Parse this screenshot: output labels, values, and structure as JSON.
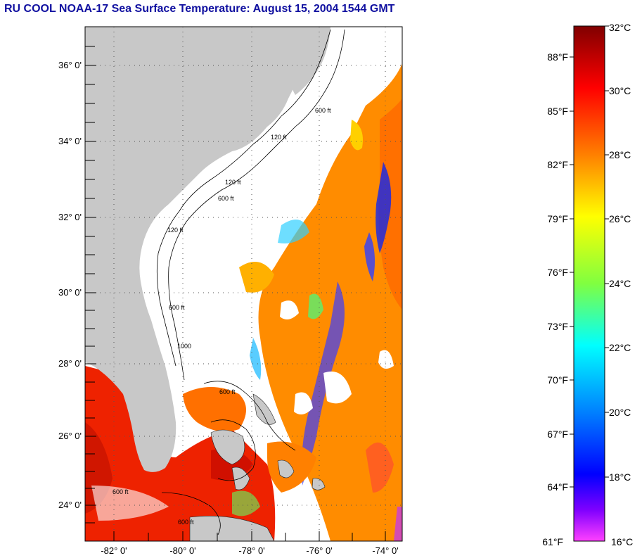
{
  "title": "RU COOL  NOAA-17  Sea Surface Temperature:  August 15, 2004 1544 GMT",
  "map": {
    "lat_labels": [
      "36° 0'",
      "34° 0'",
      "32° 0'",
      "30° 0'",
      "28° 0'",
      "26° 0'",
      "24° 0'"
    ],
    "lon_labels": [
      "-82° 0'",
      "-80° 0'",
      "-78° 0'",
      "-76° 0'",
      "-74° 0'"
    ],
    "isobath_labels": [
      "120 ft",
      "600 ft",
      "120 ft",
      "600 ft",
      "120 ft",
      "600 ft",
      "1000",
      "600 ft",
      "600 ft",
      "600 ft"
    ],
    "colors": {
      "land": "#c8c8c8",
      "ocean": "#ffffff"
    }
  },
  "colorbar": {
    "fahrenheit_labels": [
      "88°F",
      "85°F",
      "82°F",
      "79°F",
      "76°F",
      "73°F",
      "70°F",
      "67°F",
      "64°F",
      "61°F"
    ],
    "celsius_labels": [
      "32°C",
      "30°C",
      "28°C",
      "26°C",
      "24°C",
      "22°C",
      "20°C",
      "18°C",
      "16°C"
    ],
    "stops": [
      "#800000",
      "#ff0000",
      "#ff8000",
      "#ffff00",
      "#80ff40",
      "#00ffff",
      "#0080ff",
      "#0000ff",
      "#8000ff",
      "#ff40ff"
    ]
  }
}
